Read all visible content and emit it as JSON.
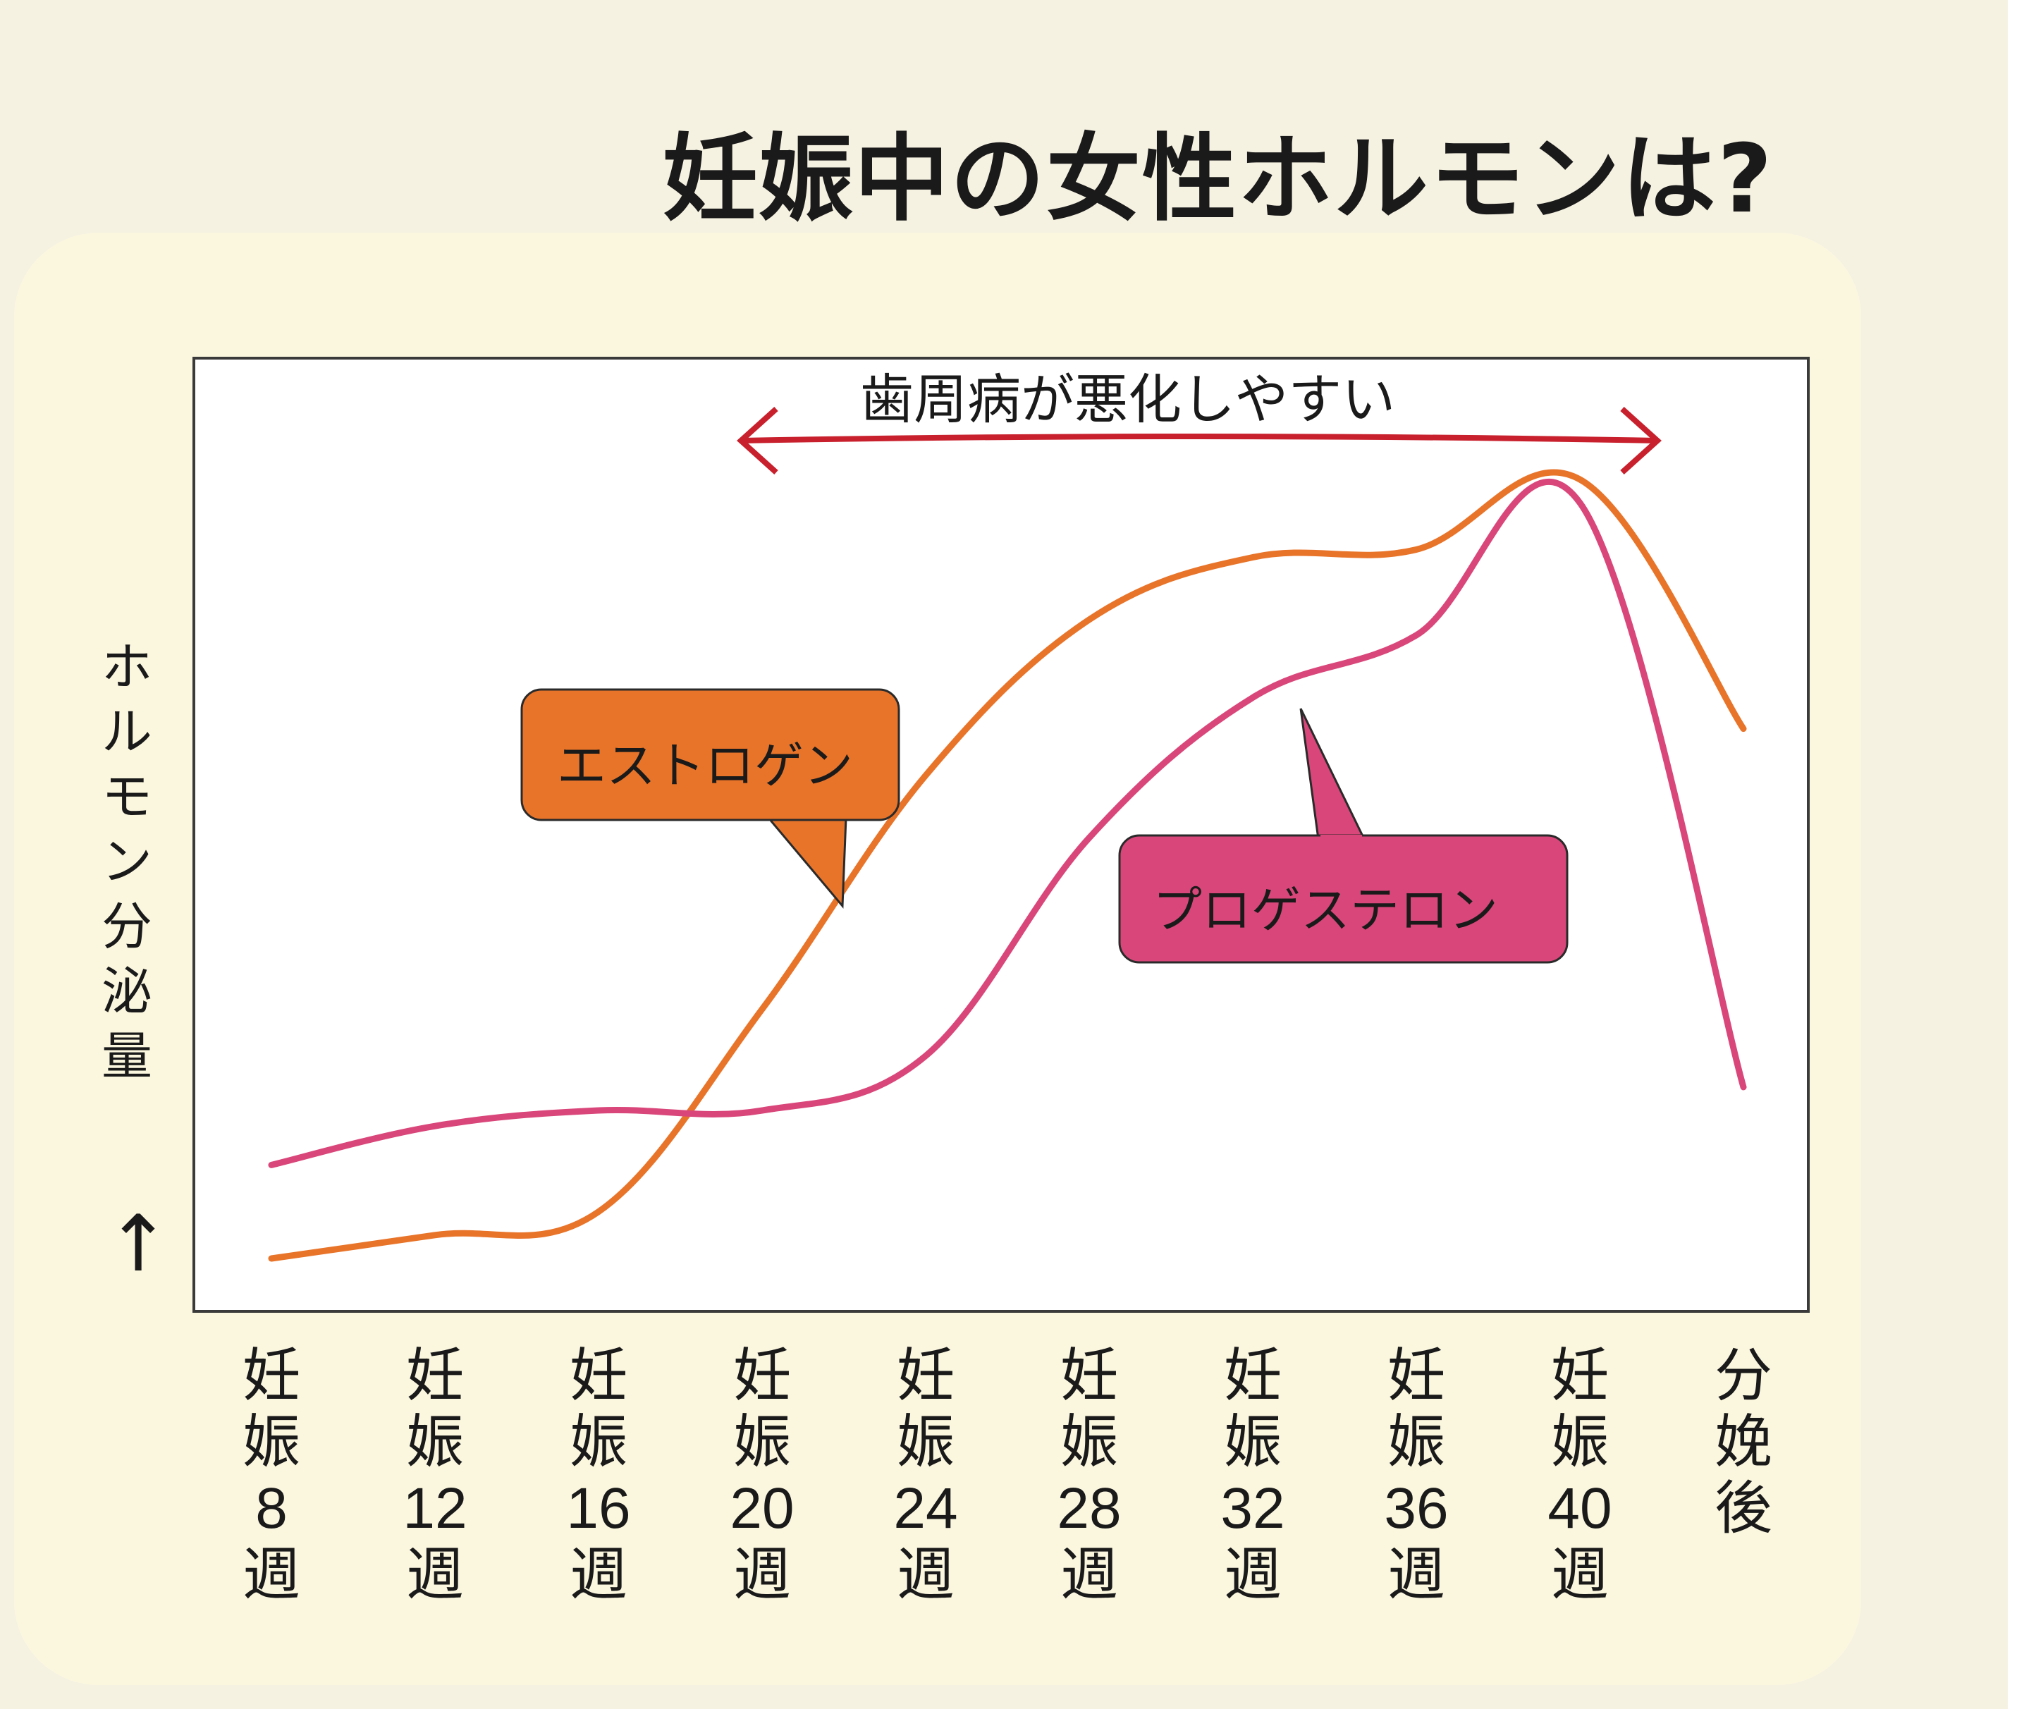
{
  "title": "妊娠中の女性ホルモンは?",
  "chart_data": {
    "type": "line",
    "ylabel": "ホルモン分泌量",
    "y_arrow": "↑",
    "categories": [
      "妊娠8週",
      "妊娠12週",
      "妊娠16週",
      "妊娠20週",
      "妊娠24週",
      "妊娠28週",
      "妊娠32週",
      "妊娠36週",
      "妊娠40週",
      "分娩後"
    ],
    "ylim": [
      0,
      100
    ],
    "series": [
      {
        "name": "エストロゲン",
        "color": "#e8742a",
        "values": [
          0,
          3,
          6,
          32,
          62,
          82,
          90,
          91,
          100,
          68
        ]
      },
      {
        "name": "プロゲステロン",
        "color": "#d9467a",
        "values": [
          12,
          17,
          19,
          19,
          26,
          54,
          72,
          80,
          97,
          22
        ]
      }
    ],
    "annotations": {
      "range_label": "歯周病が悪化しやすい",
      "range_start_category": "妊娠20週",
      "range_end_category": "妊娠40週",
      "range_arrow_color": "#c8202c"
    },
    "grid": false
  }
}
